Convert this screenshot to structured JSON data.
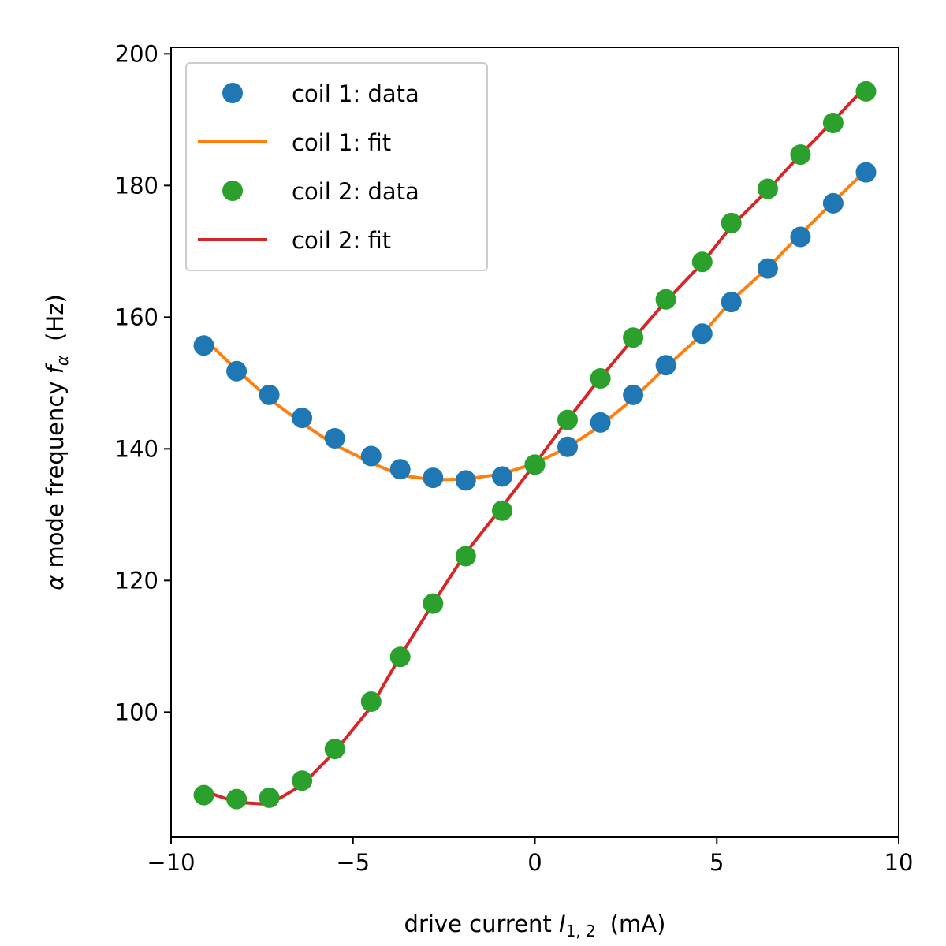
{
  "chart_data": {
    "type": "line",
    "title": "",
    "xlabel": {
      "text": "drive current ",
      "var": "I",
      "sub": "1, 2",
      "unit": "(mA)"
    },
    "ylabel": {
      "text": " mode frequency ",
      "greek": "α",
      "var": "f",
      "sub": "α",
      "unit": "(Hz)"
    },
    "xlim": [
      -10,
      10
    ],
    "ylim": [
      81,
      201
    ],
    "xticks": [
      -10,
      -5,
      0,
      5,
      10
    ],
    "xtick_labels": [
      "−10",
      "−5",
      "0",
      "5",
      "10"
    ],
    "yticks": [
      100,
      120,
      140,
      160,
      180,
      200
    ],
    "ytick_labels": [
      "100",
      "120",
      "140",
      "160",
      "180",
      "200"
    ],
    "grid": false,
    "legend_position": "top-left",
    "x": [
      -9.1,
      -8.2,
      -7.3,
      -6.4,
      -5.5,
      -4.5,
      -3.7,
      -2.8,
      -1.9,
      -0.9,
      0.0,
      0.9,
      1.8,
      2.7,
      3.6,
      4.6,
      5.4,
      6.4,
      7.3,
      8.2,
      9.1
    ],
    "series": [
      {
        "name": "coil 1: data",
        "kind": "scatter",
        "color": "#1f77b4",
        "values": [
          155.7,
          151.8,
          148.2,
          144.7,
          141.6,
          138.9,
          136.9,
          135.6,
          135.2,
          135.8,
          137.6,
          140.3,
          144.0,
          148.2,
          152.7,
          157.5,
          162.3,
          167.4,
          172.2,
          177.3,
          182.0
        ]
      },
      {
        "name": "coil 1: fit",
        "kind": "line",
        "color": "#ff7f0e",
        "values": [
          156.8,
          152.0,
          147.6,
          143.9,
          140.6,
          137.9,
          136.0,
          135.3,
          135.4,
          136.2,
          137.8,
          140.2,
          143.5,
          147.6,
          152.4,
          157.4,
          162.5,
          167.5,
          172.6,
          177.5,
          182.3
        ]
      },
      {
        "name": "coil 2: data",
        "kind": "scatter",
        "color": "#2ca02c",
        "values": [
          87.4,
          86.8,
          87.0,
          89.6,
          94.4,
          101.6,
          108.4,
          116.5,
          123.7,
          130.6,
          137.6,
          144.4,
          150.7,
          156.9,
          162.7,
          168.4,
          174.3,
          179.5,
          184.7,
          189.5,
          194.3
        ]
      },
      {
        "name": "coil 2: fit",
        "kind": "line",
        "color": "#d62728",
        "values": [
          88.0,
          86.3,
          86.0,
          88.9,
          94.0,
          100.8,
          108.5,
          116.5,
          124.2,
          131.2,
          137.7,
          144.4,
          150.8,
          156.7,
          162.4,
          168.2,
          173.8,
          179.3,
          184.7,
          189.8,
          195.1
        ]
      }
    ]
  }
}
